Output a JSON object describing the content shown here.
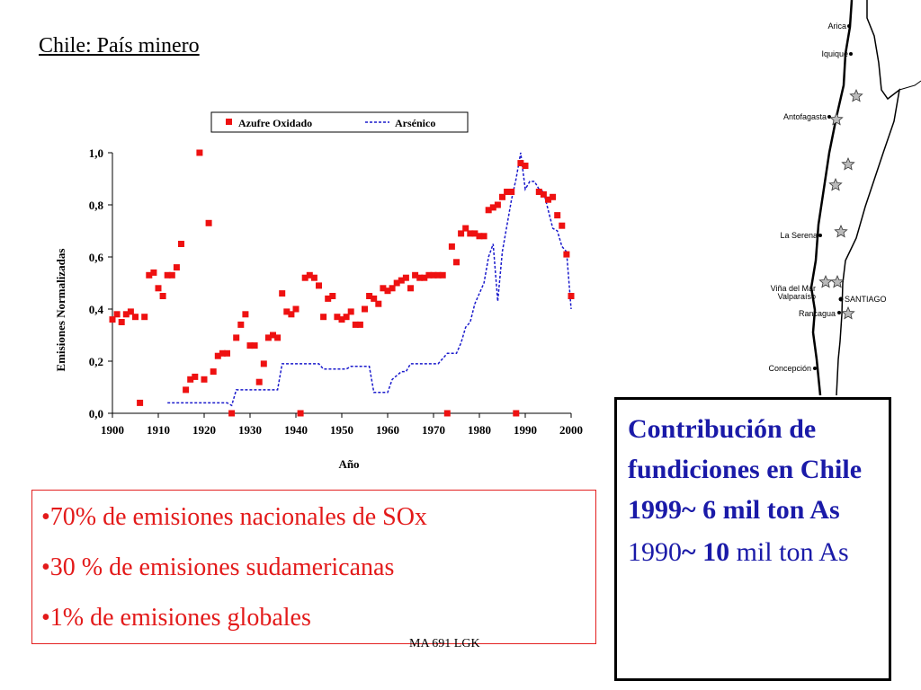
{
  "title": "Chile: País minero",
  "chart_data": {
    "type": "scatter",
    "xlabel": "Año",
    "ylabel": "Emisiones Normalizadas",
    "xlim": [
      1900,
      2000
    ],
    "ylim": [
      0,
      1.0
    ],
    "xticks": [
      "1900",
      "1910",
      "1920",
      "1930",
      "1940",
      "1950",
      "1960",
      "1970",
      "1980",
      "1990",
      "2000"
    ],
    "yticks": [
      "0,0",
      "0,2",
      "0,4",
      "0,6",
      "0,8",
      "1,0"
    ],
    "legend_position": "top",
    "series": [
      {
        "name": "Azufre Oxidado",
        "style": "markers",
        "color": "#ee1111",
        "points": [
          [
            1900,
            0.36
          ],
          [
            1901,
            0.38
          ],
          [
            1902,
            0.35
          ],
          [
            1903,
            0.38
          ],
          [
            1904,
            0.39
          ],
          [
            1905,
            0.37
          ],
          [
            1906,
            0.04
          ],
          [
            1907,
            0.37
          ],
          [
            1908,
            0.53
          ],
          [
            1909,
            0.54
          ],
          [
            1910,
            0.48
          ],
          [
            1911,
            0.45
          ],
          [
            1912,
            0.53
          ],
          [
            1913,
            0.53
          ],
          [
            1914,
            0.56
          ],
          [
            1915,
            0.65
          ],
          [
            1916,
            0.09
          ],
          [
            1917,
            0.13
          ],
          [
            1918,
            0.14
          ],
          [
            1919,
            1.0
          ],
          [
            1920,
            0.13
          ],
          [
            1921,
            0.73
          ],
          [
            1922,
            0.16
          ],
          [
            1923,
            0.22
          ],
          [
            1924,
            0.23
          ],
          [
            1925,
            0.23
          ],
          [
            1926,
            0.0
          ],
          [
            1927,
            0.29
          ],
          [
            1928,
            0.34
          ],
          [
            1929,
            0.38
          ],
          [
            1930,
            0.26
          ],
          [
            1931,
            0.26
          ],
          [
            1932,
            0.12
          ],
          [
            1933,
            0.19
          ],
          [
            1934,
            0.29
          ],
          [
            1935,
            0.3
          ],
          [
            1936,
            0.29
          ],
          [
            1937,
            0.46
          ],
          [
            1938,
            0.39
          ],
          [
            1939,
            0.38
          ],
          [
            1940,
            0.4
          ],
          [
            1941,
            0.0
          ],
          [
            1942,
            0.52
          ],
          [
            1943,
            0.53
          ],
          [
            1944,
            0.52
          ],
          [
            1945,
            0.49
          ],
          [
            1946,
            0.37
          ],
          [
            1947,
            0.44
          ],
          [
            1948,
            0.45
          ],
          [
            1949,
            0.37
          ],
          [
            1950,
            0.36
          ],
          [
            1951,
            0.37
          ],
          [
            1952,
            0.39
          ],
          [
            1953,
            0.34
          ],
          [
            1954,
            0.34
          ],
          [
            1955,
            0.4
          ],
          [
            1956,
            0.45
          ],
          [
            1957,
            0.44
          ],
          [
            1958,
            0.42
          ],
          [
            1959,
            0.48
          ],
          [
            1960,
            0.47
          ],
          [
            1961,
            0.48
          ],
          [
            1962,
            0.5
          ],
          [
            1963,
            0.51
          ],
          [
            1964,
            0.52
          ],
          [
            1965,
            0.48
          ],
          [
            1966,
            0.53
          ],
          [
            1967,
            0.52
          ],
          [
            1968,
            0.52
          ],
          [
            1969,
            0.53
          ],
          [
            1970,
            0.53
          ],
          [
            1971,
            0.53
          ],
          [
            1972,
            0.53
          ],
          [
            1973,
            0.0
          ],
          [
            1974,
            0.64
          ],
          [
            1975,
            0.58
          ],
          [
            1976,
            0.69
          ],
          [
            1977,
            0.71
          ],
          [
            1978,
            0.69
          ],
          [
            1979,
            0.69
          ],
          [
            1980,
            0.68
          ],
          [
            1981,
            0.68
          ],
          [
            1982,
            0.78
          ],
          [
            1983,
            0.79
          ],
          [
            1984,
            0.8
          ],
          [
            1985,
            0.83
          ],
          [
            1986,
            0.85
          ],
          [
            1987,
            0.85
          ],
          [
            1988,
            0.0
          ],
          [
            1989,
            0.96
          ],
          [
            1990,
            0.95
          ],
          [
            1993,
            0.85
          ],
          [
            1994,
            0.84
          ],
          [
            1995,
            0.82
          ],
          [
            1996,
            0.83
          ],
          [
            1997,
            0.76
          ],
          [
            1998,
            0.72
          ],
          [
            1999,
            0.61
          ],
          [
            2000,
            0.45
          ]
        ]
      },
      {
        "name": "Arsénico",
        "style": "dotted-line",
        "color": "#1a1acc",
        "points": [
          [
            1912,
            0.04
          ],
          [
            1925,
            0.04
          ],
          [
            1926,
            0.03
          ],
          [
            1927,
            0.09
          ],
          [
            1936,
            0.09
          ],
          [
            1937,
            0.19
          ],
          [
            1945,
            0.19
          ],
          [
            1946,
            0.17
          ],
          [
            1951,
            0.17
          ],
          [
            1952,
            0.18
          ],
          [
            1956,
            0.18
          ],
          [
            1957,
            0.08
          ],
          [
            1960,
            0.08
          ],
          [
            1961,
            0.13
          ],
          [
            1963,
            0.16
          ],
          [
            1964,
            0.16
          ],
          [
            1965,
            0.19
          ],
          [
            1971,
            0.19
          ],
          [
            1972,
            0.21
          ],
          [
            1973,
            0.23
          ],
          [
            1975,
            0.23
          ],
          [
            1976,
            0.27
          ],
          [
            1977,
            0.33
          ],
          [
            1978,
            0.35
          ],
          [
            1979,
            0.42
          ],
          [
            1980,
            0.46
          ],
          [
            1981,
            0.5
          ],
          [
            1982,
            0.6
          ],
          [
            1983,
            0.65
          ],
          [
            1984,
            0.43
          ],
          [
            1985,
            0.62
          ],
          [
            1986,
            0.72
          ],
          [
            1987,
            0.82
          ],
          [
            1988,
            0.9
          ],
          [
            1989,
            1.0
          ],
          [
            1990,
            0.86
          ],
          [
            1991,
            0.89
          ],
          [
            1992,
            0.89
          ],
          [
            1993,
            0.86
          ],
          [
            1994,
            0.85
          ],
          [
            1995,
            0.78
          ],
          [
            1996,
            0.71
          ],
          [
            1997,
            0.7
          ],
          [
            1998,
            0.64
          ],
          [
            1999,
            0.62
          ],
          [
            2000,
            0.4
          ]
        ]
      }
    ]
  },
  "bullets": [
    "•70% de emisiones nacionales de SOx",
    "•30 % de emisiones sudamericanas",
    "•1% de emisiones globales"
  ],
  "footer": "MA 691 LGK",
  "info": {
    "heading": "Contribución de fundiciones en Chile 1999~ 6 mil ton As",
    "line_pre": "1990",
    "line_bold": "~ 10",
    "line_post": " mil ton As"
  },
  "map": {
    "labels": [
      "Arica",
      "Iquique",
      "Antofagasta",
      "La Serena",
      "Viña del Mar",
      "Valparaíso",
      "SANTIAGO",
      "Rancagua",
      "Concepción"
    ],
    "star_icon": "smelter-star-icon"
  }
}
